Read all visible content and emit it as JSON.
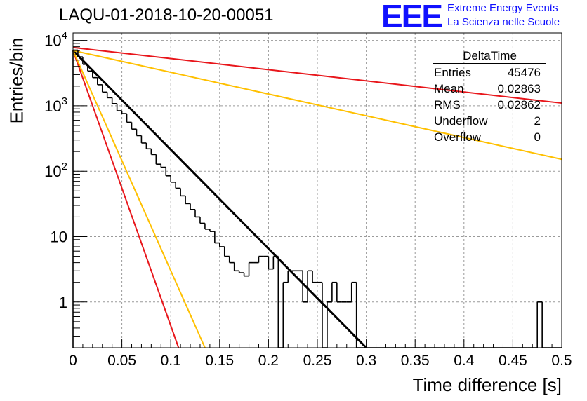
{
  "title": "LAQU-01-2018-10-20-00051",
  "logo": {
    "mark": "EEE",
    "line1": "Extreme Energy Events",
    "line2": "La Scienza nelle Scuole",
    "color": "#1010ff"
  },
  "stats": {
    "name": "DeltaTime",
    "rows": [
      {
        "label": "Entries",
        "value": "45476"
      },
      {
        "label": "Mean",
        "value": "0.02863"
      },
      {
        "label": "RMS",
        "value": "0.02862"
      },
      {
        "label": "Underflow",
        "value": "2"
      },
      {
        "label": "Overflow",
        "value": "0"
      }
    ]
  },
  "chart_data": {
    "type": "histogram",
    "title": "LAQU-01-2018-10-20-00051",
    "xlabel": "Time difference [s]",
    "ylabel": "Entries/bin",
    "xlim": [
      0,
      0.5
    ],
    "ylim": [
      0.2,
      13000
    ],
    "yscale": "log",
    "grid": true,
    "x_ticks": [
      "0",
      "0.05",
      "0.1",
      "0.15",
      "0.2",
      "0.25",
      "0.3",
      "0.35",
      "0.4",
      "0.45",
      "0.5"
    ],
    "y_ticks": [
      {
        "value": 10000,
        "base": "10",
        "exp": "4"
      },
      {
        "value": 1000,
        "base": "10",
        "exp": "3"
      },
      {
        "value": 100,
        "base": "10",
        "exp": "2"
      },
      {
        "value": 10,
        "label": "10"
      },
      {
        "value": 1,
        "label": "1"
      }
    ],
    "bin_width": 0.005,
    "bins": [
      [
        0.0,
        7100
      ],
      [
        0.005,
        5600
      ],
      [
        0.01,
        4300
      ],
      [
        0.015,
        3400
      ],
      [
        0.02,
        2700
      ],
      [
        0.025,
        2100
      ],
      [
        0.03,
        1620
      ],
      [
        0.035,
        1330
      ],
      [
        0.04,
        1080
      ],
      [
        0.045,
        840
      ],
      [
        0.05,
        760
      ],
      [
        0.055,
        560
      ],
      [
        0.06,
        440
      ],
      [
        0.065,
        350
      ],
      [
        0.07,
        270
      ],
      [
        0.075,
        220
      ],
      [
        0.08,
        180
      ],
      [
        0.085,
        128
      ],
      [
        0.09,
        115
      ],
      [
        0.095,
        85
      ],
      [
        0.1,
        68
      ],
      [
        0.105,
        55
      ],
      [
        0.11,
        42
      ],
      [
        0.115,
        32
      ],
      [
        0.12,
        26
      ],
      [
        0.125,
        20
      ],
      [
        0.13,
        16
      ],
      [
        0.135,
        13
      ],
      [
        0.14,
        12
      ],
      [
        0.145,
        8
      ],
      [
        0.15,
        7
      ],
      [
        0.155,
        5
      ],
      [
        0.16,
        4
      ],
      [
        0.165,
        3
      ],
      [
        0.17,
        2.8
      ],
      [
        0.175,
        2.5
      ],
      [
        0.18,
        4
      ],
      [
        0.185,
        4
      ],
      [
        0.19,
        5
      ],
      [
        0.195,
        5
      ],
      [
        0.2,
        3.2
      ],
      [
        0.205,
        5
      ],
      [
        0.21,
        0
      ],
      [
        0.215,
        2
      ],
      [
        0.22,
        3
      ],
      [
        0.225,
        3
      ],
      [
        0.23,
        3
      ],
      [
        0.235,
        1
      ],
      [
        0.24,
        3
      ],
      [
        0.245,
        2
      ],
      [
        0.25,
        2
      ],
      [
        0.255,
        0
      ],
      [
        0.26,
        1
      ],
      [
        0.265,
        2
      ],
      [
        0.27,
        1
      ],
      [
        0.275,
        1
      ],
      [
        0.28,
        1
      ],
      [
        0.285,
        2
      ],
      [
        0.29,
        0
      ],
      [
        0.295,
        0
      ],
      [
        0.3,
        0
      ],
      [
        0.305,
        0
      ],
      [
        0.31,
        0
      ],
      [
        0.315,
        0
      ],
      [
        0.32,
        0
      ],
      [
        0.325,
        0
      ],
      [
        0.33,
        0
      ],
      [
        0.335,
        0
      ],
      [
        0.34,
        0
      ],
      [
        0.345,
        0
      ],
      [
        0.35,
        0
      ],
      [
        0.355,
        0
      ],
      [
        0.36,
        0
      ],
      [
        0.365,
        0
      ],
      [
        0.37,
        0
      ],
      [
        0.375,
        0
      ],
      [
        0.38,
        0
      ],
      [
        0.385,
        0
      ],
      [
        0.39,
        0
      ],
      [
        0.395,
        0
      ],
      [
        0.4,
        0
      ],
      [
        0.405,
        0
      ],
      [
        0.41,
        0
      ],
      [
        0.415,
        0
      ],
      [
        0.42,
        0
      ],
      [
        0.425,
        0
      ],
      [
        0.43,
        0
      ],
      [
        0.435,
        0
      ],
      [
        0.44,
        0
      ],
      [
        0.445,
        0
      ],
      [
        0.45,
        0
      ],
      [
        0.455,
        0
      ],
      [
        0.46,
        0
      ],
      [
        0.465,
        0
      ],
      [
        0.47,
        0
      ],
      [
        0.475,
        1
      ],
      [
        0.48,
        0
      ],
      [
        0.485,
        0
      ],
      [
        0.49,
        0
      ],
      [
        0.495,
        0
      ]
    ],
    "fit_lines": [
      {
        "name": "fit",
        "color": "#000000",
        "x": [
          0,
          0.3
        ],
        "y": [
          7000,
          0.2
        ]
      },
      {
        "name": "red-steep",
        "color": "#e8161b",
        "x": [
          0,
          0.108
        ],
        "y": [
          7000,
          0.2
        ]
      },
      {
        "name": "yellow-steep",
        "color": "#ffc000",
        "x": [
          0,
          0.135
        ],
        "y": [
          7000,
          0.2
        ]
      },
      {
        "name": "red-shallow",
        "color": "#e8161b",
        "x": [
          0,
          0.5
        ],
        "y": [
          7800,
          1100
        ]
      },
      {
        "name": "yellow-shallow",
        "color": "#ffc000",
        "x": [
          0,
          0.5
        ],
        "y": [
          7000,
          152
        ]
      }
    ]
  }
}
